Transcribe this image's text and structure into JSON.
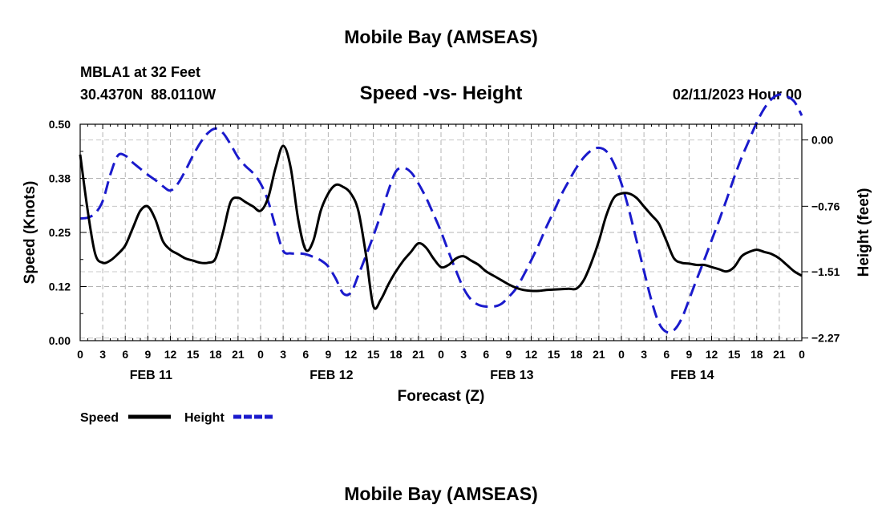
{
  "page": {
    "top_title": "Mobile Bay (AMSEAS)",
    "bottom_title": "Mobile Bay (AMSEAS)",
    "station_line": "MBLA1 at 32 Feet",
    "coords_line": "30.4370N  88.0110W",
    "date_line": "02/11/2023 Hour 00"
  },
  "chart_data": {
    "type": "line",
    "title": "Speed -vs- Height",
    "xlabel": "Forecast (Z)",
    "ylabel": "Speed (Knots)",
    "y2label": "Height (feet)",
    "x_range_hours": [
      0,
      96
    ],
    "ylim": [
      0,
      0.5
    ],
    "y2lim": [
      -2.3,
      0.18
    ],
    "yticks": [
      "0.00",
      "0.12",
      "0.25",
      "0.38",
      "0.50"
    ],
    "y2ticks": [
      "−2.27",
      "−1.51",
      "−0.76",
      "0.00"
    ],
    "y2tick_values": [
      -2.27,
      -1.51,
      -0.76,
      0.0
    ],
    "hour_labels": [
      "0",
      "3",
      "6",
      "9",
      "12",
      "15",
      "18",
      "21",
      "0",
      "3",
      "6",
      "9",
      "12",
      "15",
      "18",
      "21",
      "0",
      "3",
      "6",
      "9",
      "12",
      "15",
      "18",
      "21",
      "0",
      "3",
      "6",
      "9",
      "12",
      "15",
      "18",
      "21",
      "0"
    ],
    "day_labels": [
      {
        "label": "FEB 11",
        "hour": 9
      },
      {
        "label": "FEB 12",
        "hour": 33
      },
      {
        "label": "FEB 13",
        "hour": 57
      },
      {
        "label": "FEB 14",
        "hour": 81
      }
    ],
    "legend": [
      {
        "label": "Speed",
        "color": "#000000",
        "style": "solid"
      },
      {
        "label": "Height",
        "color": "#1a1acc",
        "style": "dashed"
      }
    ],
    "series": [
      {
        "name": "Speed",
        "axis": "left",
        "color": "#000000",
        "x": [
          0,
          1,
          2,
          3,
          4,
          5,
          6,
          7,
          8,
          9,
          10,
          11,
          12,
          13,
          14,
          15,
          16,
          17,
          18,
          19,
          20,
          21,
          22,
          23,
          24,
          25,
          26,
          27,
          28,
          29,
          30,
          31,
          32,
          33,
          34,
          35,
          36,
          37,
          38,
          39,
          40,
          41,
          42,
          43,
          44,
          45,
          46,
          47,
          48,
          49,
          50,
          51,
          52,
          53,
          54,
          55,
          56,
          57,
          58,
          59,
          60,
          61,
          62,
          63,
          64,
          65,
          66,
          67,
          68,
          69,
          70,
          71,
          72,
          73,
          74,
          75,
          76,
          77,
          78,
          79,
          80,
          81,
          82,
          83,
          84,
          85,
          86,
          87,
          88,
          89,
          90,
          91,
          92,
          93,
          94,
          95,
          96
        ],
        "values": [
          0.43,
          0.3,
          0.2,
          0.18,
          0.185,
          0.2,
          0.22,
          0.26,
          0.3,
          0.31,
          0.28,
          0.23,
          0.21,
          0.2,
          0.19,
          0.185,
          0.18,
          0.18,
          0.19,
          0.25,
          0.32,
          0.33,
          0.32,
          0.31,
          0.3,
          0.33,
          0.4,
          0.45,
          0.4,
          0.28,
          0.21,
          0.23,
          0.3,
          0.34,
          0.36,
          0.355,
          0.34,
          0.3,
          0.2,
          0.08,
          0.095,
          0.13,
          0.16,
          0.185,
          0.205,
          0.225,
          0.215,
          0.19,
          0.17,
          0.175,
          0.19,
          0.195,
          0.185,
          0.175,
          0.16,
          0.15,
          0.14,
          0.13,
          0.122,
          0.117,
          0.115,
          0.115,
          0.117,
          0.118,
          0.119,
          0.12,
          0.12,
          0.14,
          0.18,
          0.23,
          0.29,
          0.33,
          0.34,
          0.34,
          0.33,
          0.31,
          0.29,
          0.27,
          0.23,
          0.19,
          0.18,
          0.178,
          0.175,
          0.175,
          0.17,
          0.165,
          0.16,
          0.17,
          0.195,
          0.205,
          0.21,
          0.205,
          0.2,
          0.19,
          0.175,
          0.16,
          0.15
        ]
      },
      {
        "name": "Height",
        "axis": "right",
        "color": "#1a1acc",
        "x": [
          0,
          1,
          2,
          3,
          4,
          5,
          6,
          7,
          8,
          9,
          10,
          11,
          12,
          13,
          14,
          15,
          16,
          17,
          18,
          19,
          20,
          21,
          22,
          23,
          24,
          25,
          26,
          27,
          28,
          29,
          30,
          31,
          32,
          33,
          34,
          35,
          36,
          37,
          38,
          39,
          40,
          41,
          42,
          43,
          44,
          45,
          46,
          47,
          48,
          49,
          50,
          51,
          52,
          53,
          54,
          55,
          56,
          57,
          58,
          59,
          60,
          61,
          62,
          63,
          64,
          65,
          66,
          67,
          68,
          69,
          70,
          71,
          72,
          73,
          74,
          75,
          76,
          77,
          78,
          79,
          80,
          81,
          82,
          83,
          84,
          85,
          86,
          87,
          88,
          89,
          90,
          91,
          92,
          93,
          94,
          95,
          96
        ],
        "values": [
          -0.9,
          -0.89,
          -0.84,
          -0.7,
          -0.4,
          -0.18,
          -0.18,
          -0.26,
          -0.33,
          -0.4,
          -0.46,
          -0.53,
          -0.58,
          -0.5,
          -0.35,
          -0.18,
          -0.03,
          0.08,
          0.13,
          0.08,
          -0.05,
          -0.2,
          -0.3,
          -0.38,
          -0.5,
          -0.7,
          -1.0,
          -1.27,
          -1.3,
          -1.3,
          -1.31,
          -1.34,
          -1.38,
          -1.45,
          -1.59,
          -1.76,
          -1.75,
          -1.55,
          -1.33,
          -1.1,
          -0.85,
          -0.58,
          -0.36,
          -0.32,
          -0.37,
          -0.5,
          -0.66,
          -0.85,
          -1.05,
          -1.28,
          -1.5,
          -1.7,
          -1.83,
          -1.89,
          -1.91,
          -1.91,
          -1.88,
          -1.8,
          -1.7,
          -1.55,
          -1.38,
          -1.2,
          -1.0,
          -0.82,
          -0.63,
          -0.47,
          -0.32,
          -0.2,
          -0.12,
          -0.09,
          -0.13,
          -0.27,
          -0.5,
          -0.8,
          -1.15,
          -1.5,
          -1.84,
          -2.1,
          -2.2,
          -2.18,
          -2.05,
          -1.83,
          -1.6,
          -1.38,
          -1.15,
          -0.92,
          -0.68,
          -0.43,
          -0.2,
          0.0,
          0.2,
          0.36,
          0.47,
          0.52,
          0.5,
          0.44,
          0.28
        ]
      }
    ]
  }
}
